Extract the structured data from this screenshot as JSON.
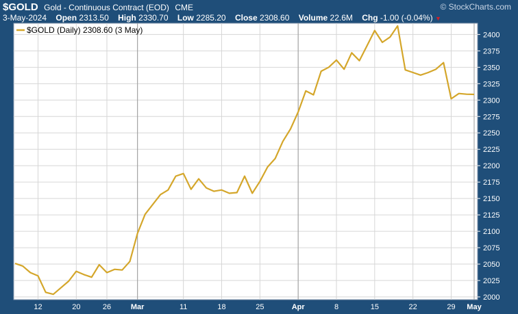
{
  "header": {
    "symbol": "$GOLD",
    "description": "Gold - Continuous Contract (EOD)",
    "exchange": "CME",
    "brand": "© StockCharts.com",
    "date": "3-May-2024",
    "open_label": "Open",
    "open": "2313.50",
    "high_label": "High",
    "high": "2330.70",
    "low_label": "Low",
    "low": "2285.20",
    "close_label": "Close",
    "close": "2308.60",
    "volume_label": "Volume",
    "volume": "22.6M",
    "chg_label": "Chg",
    "chg": "-1.00 (-0.04%)",
    "chg_marker": "▼"
  },
  "legend": {
    "text": "$GOLD (Daily) 2308.60 (3 May)"
  },
  "colors": {
    "background": "#1f4e79",
    "plot": "#ffffff",
    "line": "#d4a62a",
    "grid": "#d6d6d6"
  },
  "chart_data": {
    "type": "line",
    "title": "$GOLD",
    "xlabel": "",
    "ylabel": "",
    "ylim": [
      2000,
      2415
    ],
    "y_ticks": [
      2000,
      2025,
      2050,
      2075,
      2100,
      2125,
      2150,
      2175,
      2200,
      2225,
      2250,
      2275,
      2300,
      2325,
      2350,
      2375,
      2400
    ],
    "y_axis_side": "right",
    "x_tick_labels": [
      "12",
      "20",
      "26",
      "Mar",
      "11",
      "18",
      "25",
      "Apr",
      "8",
      "15",
      "22",
      "29",
      "May"
    ],
    "x_tick_index": [
      3,
      8,
      12,
      16,
      22,
      27,
      32,
      37,
      42,
      47,
      52,
      57,
      60
    ],
    "month_separators_index": [
      16,
      37,
      60
    ],
    "legend_position": "top-left",
    "grid": true,
    "series": [
      {
        "name": "$GOLD (Daily)",
        "values": [
          2051,
          2047,
          2037,
          2032,
          2007,
          2004,
          2014,
          2024,
          2039,
          2034,
          2030,
          2049,
          2037,
          2042,
          2041,
          2054,
          2097,
          2126,
          2141,
          2156,
          2163,
          2184,
          2188,
          2164,
          2180,
          2166,
          2161,
          2163,
          2158,
          2159,
          2184,
          2158,
          2176,
          2198,
          2211,
          2237,
          2256,
          2282,
          2314,
          2308,
          2344,
          2350,
          2361,
          2347,
          2372,
          2360,
          2383,
          2406,
          2388,
          2396,
          2413,
          2346,
          2342,
          2338,
          2342,
          2347,
          2357,
          2302,
          2310,
          2309,
          2308.6
        ]
      }
    ]
  }
}
